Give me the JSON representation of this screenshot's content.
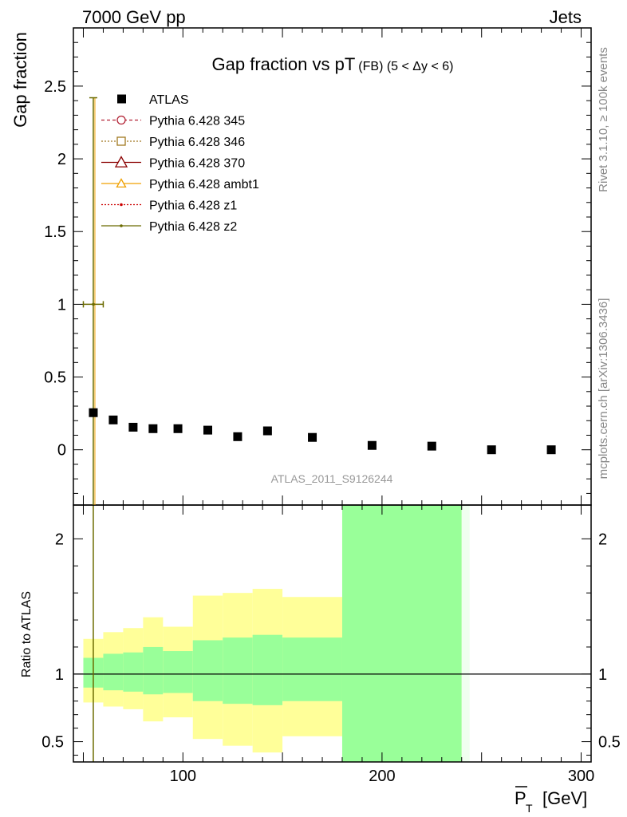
{
  "header": {
    "left": "7000 GeV pp",
    "right": "Jets"
  },
  "side_text": {
    "rivet": "Rivet 3.1.10, ≥ 100k events",
    "mcplots": "mcplots.cern.ch [arXiv:1306.3436]"
  },
  "colors": {
    "atlas": "#000000",
    "p345": "#b22234",
    "p346": "#a07820",
    "p370": "#8b0000",
    "ambt1": "#f0a000",
    "z1": "#cc0000",
    "z2": "#6b6b00",
    "band_stat": "#99ff99",
    "band_total": "#ffff99"
  },
  "chart_data": [
    {
      "type": "scatter",
      "title": "Gap fraction vs pT",
      "title_sub": "(FB) (5 < Δy < 6)",
      "ylabel": "Gap fraction",
      "watermark": "ATLAS_2011_S9126244",
      "xlim": [
        45,
        305
      ],
      "ylim": [
        -0.38,
        2.9
      ],
      "yticks": [
        0,
        0.5,
        1,
        1.5,
        2,
        2.5
      ],
      "ytick_labels": [
        "0",
        "0.5",
        "1",
        "1.5",
        "2",
        "2.5"
      ],
      "legend_position": "top-left",
      "series": [
        {
          "name": "ATLAS",
          "marker": "square",
          "x": [
            55,
            65,
            75,
            85,
            97.5,
            112.5,
            127.5,
            142.5,
            165,
            195,
            225,
            255,
            285
          ],
          "y": [
            0.255,
            0.205,
            0.155,
            0.145,
            0.145,
            0.135,
            0.09,
            0.13,
            0.085,
            0.03,
            0.025,
            0.0,
            0.0
          ]
        },
        {
          "name": "Pythia 6.428 345",
          "marker": "open-circle",
          "x": [
            55
          ],
          "y": [
            1.0
          ],
          "xerr": [
            5
          ],
          "yerr": [
            1.42
          ]
        },
        {
          "name": "Pythia 6.428 346",
          "marker": "open-square",
          "x": [
            55
          ],
          "y": [
            1.0
          ],
          "xerr": [
            5
          ],
          "yerr": [
            1.42
          ]
        },
        {
          "name": "Pythia 6.428 370",
          "marker": "open-triangle",
          "x": [
            55
          ],
          "y": [
            1.0
          ],
          "xerr": [
            5
          ],
          "yerr": [
            1.42
          ]
        },
        {
          "name": "Pythia 6.428 ambt1",
          "marker": "open-triangle",
          "x": [
            55
          ],
          "y": [
            1.0
          ],
          "xerr": [
            5
          ],
          "yerr": [
            1.42
          ]
        },
        {
          "name": "Pythia 6.428 z1",
          "marker": "dot",
          "x": [
            55
          ],
          "y": [
            1.0
          ],
          "xerr": [
            5
          ],
          "yerr": [
            1.42
          ]
        },
        {
          "name": "Pythia 6.428 z2",
          "marker": "dot",
          "x": [
            55
          ],
          "y": [
            1.0
          ],
          "xerr": [
            5
          ],
          "yerr": [
            1.42
          ]
        }
      ]
    },
    {
      "type": "area",
      "ylabel": "Ratio to ATLAS",
      "xlabel": "P",
      "xlabel_sub": "T",
      "xlabel_unit": "[GeV]",
      "xlim": [
        45,
        305
      ],
      "ylim": [
        0.35,
        2.25
      ],
      "xticks": [
        100,
        200,
        300
      ],
      "xtick_labels": [
        "100",
        "200",
        "300"
      ],
      "yticks": [
        0.5,
        1,
        2
      ],
      "ytick_labels": [
        "0.5",
        "1",
        "2"
      ],
      "reference_line": 1,
      "bins": [
        {
          "x": [
            50,
            60
          ],
          "stat": [
            0.9,
            1.12
          ],
          "total": [
            0.79,
            1.26
          ]
        },
        {
          "x": [
            60,
            70
          ],
          "stat": [
            0.88,
            1.15
          ],
          "total": [
            0.76,
            1.31
          ]
        },
        {
          "x": [
            70,
            80
          ],
          "stat": [
            0.87,
            1.16
          ],
          "total": [
            0.74,
            1.34
          ]
        },
        {
          "x": [
            80,
            90
          ],
          "stat": [
            0.85,
            1.2
          ],
          "total": [
            0.65,
            1.42
          ]
        },
        {
          "x": [
            90,
            105
          ],
          "stat": [
            0.86,
            1.17
          ],
          "total": [
            0.68,
            1.35
          ]
        },
        {
          "x": [
            105,
            120
          ],
          "stat": [
            0.8,
            1.25
          ],
          "total": [
            0.52,
            1.58
          ]
        },
        {
          "x": [
            120,
            135
          ],
          "stat": [
            0.78,
            1.27
          ],
          "total": [
            0.47,
            1.6
          ]
        },
        {
          "x": [
            135,
            150
          ],
          "stat": [
            0.77,
            1.29
          ],
          "total": [
            0.42,
            1.63
          ]
        },
        {
          "x": [
            150,
            180
          ],
          "stat": [
            0.8,
            1.27
          ],
          "total": [
            0.54,
            1.57
          ]
        },
        {
          "x": [
            180,
            240
          ],
          "stat": [
            0.35,
            2.25
          ],
          "total": [
            0.35,
            2.25
          ]
        },
        {
          "x": [
            240,
            244
          ],
          "stat": [
            0.35,
            2.25
          ],
          "total": [
            0.35,
            2.25
          ],
          "pale": true
        }
      ]
    }
  ]
}
